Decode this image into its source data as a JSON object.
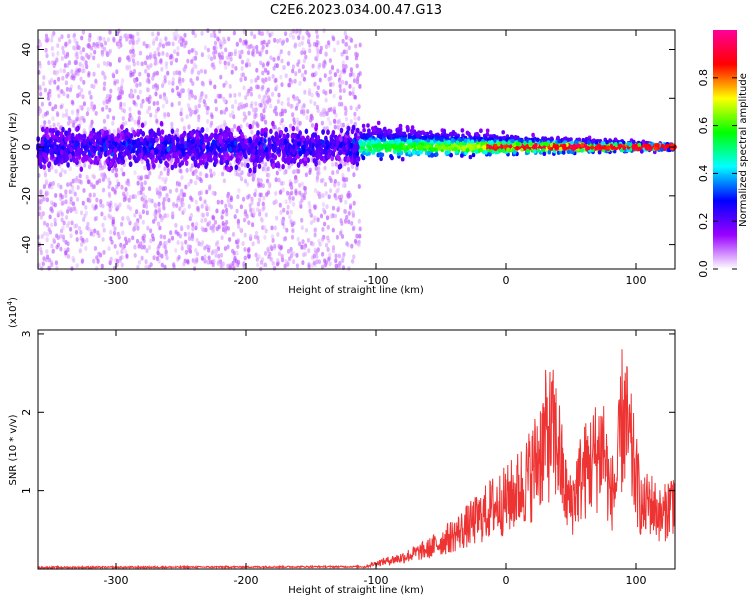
{
  "title": "C2E6.2023.034.00.47.G13",
  "chart_data": [
    {
      "type": "heatmap",
      "xlabel": "Height of straight line (km)",
      "ylabel": "Frequency (Hz)",
      "xlim": [
        -360,
        130
      ],
      "ylim": [
        -50,
        48
      ],
      "x_ticks": [
        -300,
        -200,
        -100,
        0,
        100
      ],
      "y_ticks": [
        -40,
        -20,
        0,
        20,
        40
      ],
      "colorbar": {
        "label": "Normalized spectral amplitude",
        "range": [
          0,
          1
        ],
        "ticks": [
          0.0,
          0.2,
          0.4,
          0.6,
          0.8
        ],
        "colors": [
          "#ffffff",
          "#9900ff",
          "#0000ff",
          "#00ffff",
          "#00ff00",
          "#ffff00",
          "#ff0000",
          "#ff0099"
        ]
      },
      "signal_band": {
        "noisy_region_end_x": -112,
        "center_frequency": 0
      }
    },
    {
      "type": "line",
      "xlabel": "Height of straight line (km)",
      "ylabel": "SNR (10 * v/v)",
      "exponent_label": "(x10",
      "exponent_power": "4",
      "exponent_close": ")",
      "xlim": [
        -360,
        130
      ],
      "ylim": [
        0,
        3.05
      ],
      "x_ticks": [
        -300,
        -200,
        -100,
        0,
        100
      ],
      "y_ticks": [
        1,
        2,
        3
      ],
      "color": "#ee3333",
      "envelope": {
        "x": [
          -360,
          -110,
          -100,
          -80,
          -60,
          -40,
          -20,
          -10,
          0,
          10,
          20,
          30,
          35,
          40,
          45,
          50,
          55,
          60,
          70,
          75,
          80,
          85,
          90,
          95,
          100,
          105,
          110,
          120,
          130
        ],
        "y": [
          0.02,
          0.03,
          0.1,
          0.2,
          0.35,
          0.6,
          0.9,
          1.1,
          1.2,
          1.4,
          1.7,
          2.3,
          2.4,
          2.2,
          1.4,
          1.1,
          1.5,
          1.7,
          2.0,
          2.2,
          1.3,
          1.5,
          2.8,
          2.2,
          1.6,
          1.0,
          1.2,
          0.9,
          1.3
        ]
      }
    }
  ]
}
